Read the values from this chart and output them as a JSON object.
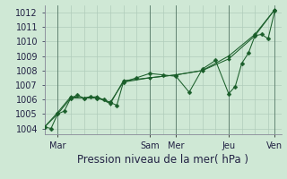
{
  "xlabel": "Pression niveau de la mer( hPa )",
  "bg_color": "#cfe8d5",
  "grid_color": "#b0ccbb",
  "line_color": "#1a5e2a",
  "ylim": [
    1003.6,
    1012.5
  ],
  "yticks": [
    1004,
    1005,
    1006,
    1007,
    1008,
    1009,
    1010,
    1011,
    1012
  ],
  "xlim": [
    0,
    216
  ],
  "x_ticks": [
    12,
    96,
    120,
    168,
    210
  ],
  "x_label_names": [
    "Mar",
    "Sam",
    "Mer",
    "Jeu",
    "Ven"
  ],
  "vlines": [
    12,
    96,
    120,
    168,
    210
  ],
  "line1_x": [
    0,
    6,
    12,
    18,
    24,
    30,
    36,
    42,
    48,
    54,
    60,
    66,
    72,
    84,
    96,
    108,
    120,
    132,
    144,
    156,
    168,
    174,
    180,
    186,
    192,
    198,
    204,
    210
  ],
  "line1_y": [
    1004.1,
    1004.0,
    1005.0,
    1005.2,
    1006.1,
    1006.3,
    1006.1,
    1006.2,
    1006.1,
    1006.0,
    1005.8,
    1005.6,
    1007.2,
    1007.5,
    1007.8,
    1007.7,
    1007.6,
    1006.5,
    1008.1,
    1008.7,
    1006.4,
    1006.9,
    1008.5,
    1009.2,
    1010.4,
    1010.5,
    1010.2,
    1012.1
  ],
  "line2_x": [
    0,
    12,
    24,
    36,
    48,
    60,
    72,
    96,
    120,
    144,
    168,
    192,
    210
  ],
  "line2_y": [
    1004.1,
    1005.1,
    1006.2,
    1006.1,
    1006.2,
    1005.7,
    1007.3,
    1007.5,
    1007.7,
    1008.0,
    1009.0,
    1010.5,
    1012.2
  ],
  "line3_x": [
    0,
    12,
    24,
    36,
    48,
    60,
    72,
    96,
    120,
    144,
    168,
    192,
    210
  ],
  "line3_y": [
    1004.1,
    1005.0,
    1006.1,
    1006.1,
    1006.1,
    1005.8,
    1007.2,
    1007.5,
    1007.7,
    1008.0,
    1008.8,
    1010.4,
    1012.2
  ],
  "marker_size": 2.5,
  "font_color": "#222244",
  "xlabel_fontsize": 8.5,
  "tick_fontsize": 7
}
